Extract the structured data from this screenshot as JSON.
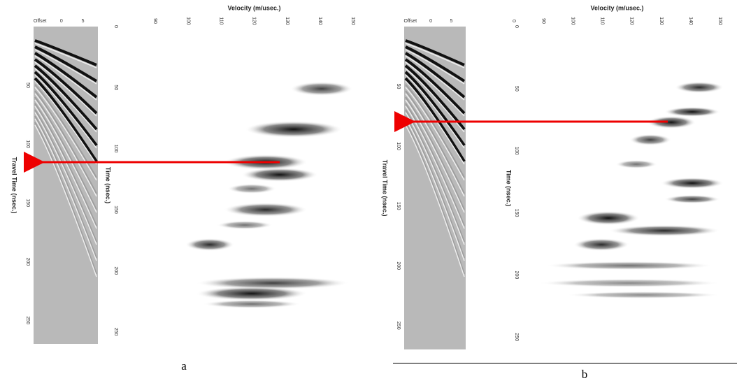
{
  "panels": [
    {
      "velocity_label": "Velocity (m/usec.)",
      "time_label": "Time (nsec.)",
      "travel_time_label": "Travel Time (nsec.)",
      "velocity_ticks": [
        "90",
        "100",
        "110",
        "120",
        "130",
        "140",
        "150"
      ],
      "time_ticks": [
        "0",
        "50",
        "100",
        "150",
        "200",
        "250"
      ],
      "travel_time_ticks": [
        "50",
        "100",
        "150",
        "200",
        "250"
      ],
      "gather_ticks": [
        "Offset",
        "0",
        "5"
      ],
      "caption": "a"
    },
    {
      "velocity_label": "Velocity (m/usec.)",
      "time_label": "Time (nsec.)",
      "travel_time_label": "Travel Time (nsec.)",
      "velocity_ticks": [
        "0",
        "90",
        "100",
        "110",
        "120",
        "130",
        "140",
        "150"
      ],
      "time_ticks": [
        "0",
        "50",
        "100",
        "150",
        "200",
        "250"
      ],
      "travel_time_ticks": [
        "50",
        "100",
        "150",
        "200",
        "250"
      ],
      "gather_ticks": [
        "Offset",
        "0",
        "5"
      ],
      "caption": "b"
    }
  ]
}
